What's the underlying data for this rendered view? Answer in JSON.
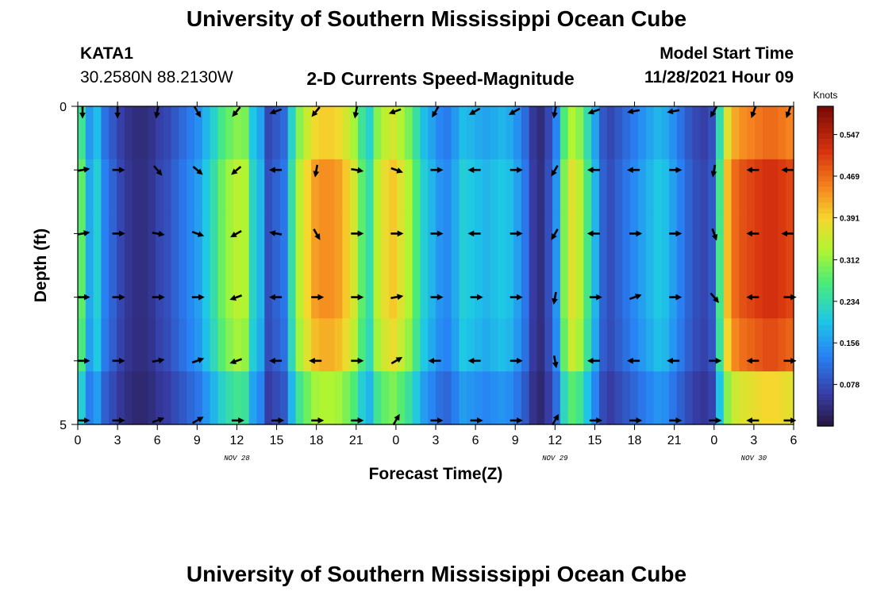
{
  "header": {
    "title": "University of Southern Mississippi Ocean Cube",
    "station": "KATA1",
    "coords": "30.2580N  88.2130W",
    "subtitle": "2-D Currents Speed-Magnitude",
    "model_start_label": "Model Start Time",
    "model_start_value": "11/28/2021 Hour 09"
  },
  "footer": {
    "title": "University of Southern Mississippi Ocean Cube"
  },
  "chart_data": {
    "type": "heatmap",
    "title": "2-D Currents Speed-Magnitude",
    "xlabel": "Forecast Time(Z)",
    "ylabel": "Depth (ft)",
    "units": "Knots",
    "x_range": [
      0,
      54
    ],
    "y_range": [
      0,
      5
    ],
    "x_ticks": [
      {
        "h": 0,
        "label": "0"
      },
      {
        "h": 3,
        "label": "3"
      },
      {
        "h": 6,
        "label": "6"
      },
      {
        "h": 9,
        "label": "9"
      },
      {
        "h": 12,
        "label": "12"
      },
      {
        "h": 15,
        "label": "15"
      },
      {
        "h": 18,
        "label": "18"
      },
      {
        "h": 21,
        "label": "21"
      },
      {
        "h": 24,
        "label": "0"
      },
      {
        "h": 27,
        "label": "3"
      },
      {
        "h": 30,
        "label": "6"
      },
      {
        "h": 33,
        "label": "9"
      },
      {
        "h": 36,
        "label": "12"
      },
      {
        "h": 39,
        "label": "15"
      },
      {
        "h": 42,
        "label": "18"
      },
      {
        "h": 45,
        "label": "21"
      },
      {
        "h": 48,
        "label": "0"
      },
      {
        "h": 51,
        "label": "3"
      },
      {
        "h": 54,
        "label": "6"
      }
    ],
    "y_ticks": [
      {
        "d": 0,
        "label": "0"
      },
      {
        "d": 5,
        "label": "5"
      }
    ],
    "date_labels": [
      {
        "h": 12,
        "label": "NOV 28"
      },
      {
        "h": 36,
        "label": "NOV 29"
      },
      {
        "h": 51,
        "label": "NOV 30"
      }
    ],
    "colorbar": {
      "min": 0.0,
      "max": 0.6,
      "ticks": [
        0.078,
        0.156,
        0.234,
        0.312,
        0.391,
        0.469,
        0.547
      ],
      "tick_labels": [
        "0.078",
        "0.156",
        "0.234",
        "0.312",
        "0.391",
        "0.469",
        "0.547"
      ]
    },
    "speed_profile": [
      0.28,
      0.17,
      0.21,
      0.13,
      0.1,
      0.07,
      0.05,
      0.04,
      0.04,
      0.05,
      0.07,
      0.08,
      0.1,
      0.12,
      0.14,
      0.16,
      0.2,
      0.24,
      0.29,
      0.32,
      0.34,
      0.33,
      0.22,
      0.18,
      0.08,
      0.1,
      0.12,
      0.24,
      0.34,
      0.39,
      0.43,
      0.44,
      0.44,
      0.43,
      0.4,
      0.36,
      0.28,
      0.24,
      0.34,
      0.38,
      0.4,
      0.37,
      0.33,
      0.27,
      0.21,
      0.18,
      0.15,
      0.14,
      0.17,
      0.21,
      0.2,
      0.19,
      0.18,
      0.19,
      0.2,
      0.19,
      0.16,
      0.12,
      0.06,
      0.04,
      0.08,
      0.15,
      0.3,
      0.37,
      0.34,
      0.26,
      0.18,
      0.1,
      0.08,
      0.1,
      0.12,
      0.14,
      0.16,
      0.18,
      0.2,
      0.19,
      0.16,
      0.13,
      0.1,
      0.08,
      0.07,
      0.09,
      0.26,
      0.41,
      0.47,
      0.49,
      0.5,
      0.51,
      0.52,
      0.52,
      0.51,
      0.5
    ],
    "depth_factor": [
      0.9,
      1.0,
      1.0,
      1.0,
      0.95,
      0.75
    ],
    "arrow_times": [
      0,
      3,
      6,
      9,
      12,
      15,
      18,
      21,
      24,
      27,
      30,
      33,
      36,
      39,
      42,
      45,
      48,
      51,
      54
    ],
    "arrow_depths": [
      0,
      1,
      2,
      3,
      4,
      5
    ],
    "arrow_dirs_deg": [
      [
        -90,
        -90,
        -100,
        -60,
        -130,
        -160,
        -130,
        -100,
        -160,
        -120,
        -150,
        -150,
        -100,
        -160,
        -170,
        -170,
        -120,
        -110,
        -110
      ],
      [
        10,
        0,
        -50,
        -40,
        -140,
        180,
        -100,
        -10,
        -20,
        0,
        180,
        0,
        -120,
        180,
        180,
        0,
        -100,
        180,
        180
      ],
      [
        10,
        0,
        -10,
        -20,
        -150,
        170,
        -60,
        0,
        0,
        0,
        180,
        0,
        -120,
        180,
        0,
        0,
        -70,
        180,
        180
      ],
      [
        0,
        0,
        0,
        0,
        -160,
        180,
        0,
        0,
        10,
        0,
        0,
        0,
        -100,
        0,
        20,
        0,
        -50,
        180,
        0
      ],
      [
        0,
        0,
        10,
        20,
        200,
        180,
        180,
        0,
        30,
        180,
        180,
        0,
        -80,
        180,
        180,
        180,
        0,
        180,
        0
      ],
      [
        0,
        0,
        20,
        30,
        0,
        0,
        0,
        0,
        60,
        0,
        0,
        0,
        60,
        0,
        0,
        0,
        0,
        180,
        0
      ]
    ]
  }
}
